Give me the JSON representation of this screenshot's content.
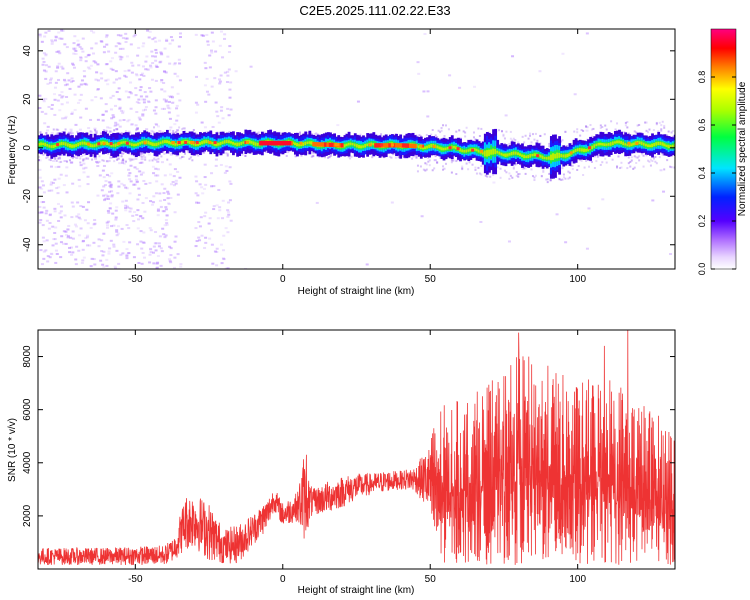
{
  "title": "C2E5.2025.111.02.22.E33",
  "chart_data": [
    {
      "type": "heatmap",
      "xlabel": "Height of straight line (km)",
      "ylabel": "Frequency (Hz)",
      "xlim": [
        -83,
        133
      ],
      "ylim": [
        -50,
        49
      ],
      "xticks": [
        -50,
        0,
        50,
        100
      ],
      "yticks": [
        -40,
        -20,
        0,
        20,
        40
      ],
      "grid": false,
      "description_band_center_hz": [
        [
          -83,
          1
        ],
        [
          -40,
          2
        ],
        [
          -20,
          2
        ],
        [
          0,
          2
        ],
        [
          20,
          1
        ],
        [
          40,
          1
        ],
        [
          55,
          0
        ],
        [
          70,
          -2
        ],
        [
          92,
          -4
        ],
        [
          110,
          2
        ],
        [
          133,
          1
        ]
      ],
      "colorbar": {
        "label": "Normalized spectral amplitude",
        "range": [
          0,
          1
        ],
        "ticks": [
          "0.0",
          "0.2",
          "0.4",
          "0.6",
          "0.8"
        ],
        "colors": [
          "#ffffff",
          "#d9b3ff",
          "#8a2be2",
          "#0000ff",
          "#00ffff",
          "#00ff00",
          "#ffff00",
          "#ff8000",
          "#ff0000",
          "#ff00ff"
        ]
      }
    },
    {
      "type": "line",
      "xlabel": "Height of straight line (km)",
      "ylabel": "SNR (10 * v/v)",
      "xlim": [
        -83,
        133
      ],
      "ylim": [
        0,
        9000
      ],
      "xticks": [
        -50,
        0,
        50,
        100
      ],
      "yticks": [
        2000,
        4000,
        6000,
        8000
      ],
      "grid": false,
      "color": "#ee3333",
      "envelope": {
        "x": [
          -83,
          -60,
          -40,
          -37,
          -33,
          -30,
          -25,
          -20,
          -15,
          -10,
          -5,
          -3,
          0,
          5,
          7,
          10,
          15,
          20,
          25,
          30,
          35,
          40,
          45,
          50,
          52,
          55,
          60,
          70,
          80,
          90,
          100,
          110,
          120,
          133
        ],
        "low": [
          150,
          150,
          150,
          300,
          700,
          800,
          300,
          200,
          200,
          900,
          1500,
          2200,
          1600,
          1800,
          1000,
          2000,
          2100,
          2300,
          2600,
          2800,
          2900,
          3000,
          2900,
          2000,
          500,
          200,
          200,
          150,
          150,
          150,
          150,
          150,
          150,
          150
        ],
        "high": [
          800,
          800,
          900,
          1200,
          2800,
          2900,
          2500,
          1500,
          1700,
          2100,
          2700,
          3100,
          2500,
          2900,
          4300,
          3000,
          3300,
          3500,
          3600,
          3600,
          3700,
          3700,
          3900,
          4700,
          6300,
          6200,
          6400,
          7000,
          8200,
          7700,
          7000,
          7600,
          6500,
          5400
        ]
      },
      "spikes": [
        {
          "x": 8,
          "y": 4300
        },
        {
          "x": 80,
          "y": 8900
        },
        {
          "x": 109,
          "y": 8400
        },
        {
          "x": 117,
          "y": 9000
        }
      ]
    }
  ]
}
